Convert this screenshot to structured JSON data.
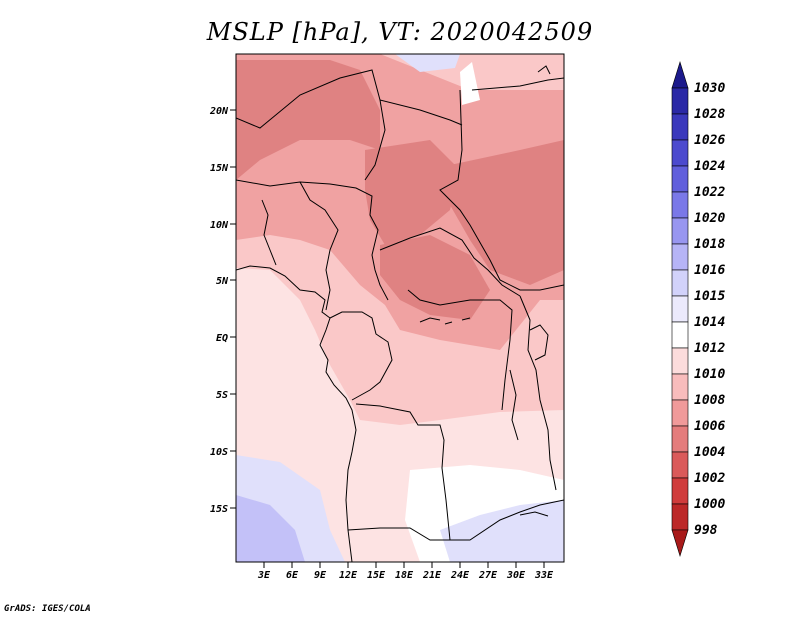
{
  "title": "MSLP [hPa], VT: 2020042509",
  "credit": "GrADS: IGES/COLA",
  "map": {
    "region": "Central Africa",
    "lat_labels": [
      "20N",
      "15N",
      "10N",
      "5N",
      "EQ",
      "5S",
      "10S",
      "15S"
    ],
    "lon_labels": [
      "3E",
      "6E",
      "9E",
      "12E",
      "15E",
      "18E",
      "21E",
      "24E",
      "27E",
      "30E",
      "33E"
    ]
  },
  "colorbar": {
    "levels": [
      "1030",
      "1028",
      "1026",
      "1024",
      "1022",
      "1020",
      "1018",
      "1016",
      "1015",
      "1014",
      "1012",
      "1010",
      "1008",
      "1006",
      "1004",
      "1002",
      "1000",
      "998"
    ],
    "colors": [
      "#1c1a8c",
      "#2a28a6",
      "#3a38bc",
      "#4c4ace",
      "#615fdc",
      "#7a78e8",
      "#9896f0",
      "#b6b4f6",
      "#d2d2fa",
      "#eceafc",
      "#ffffff",
      "#fcdcdc",
      "#f8bcbc",
      "#f09a9a",
      "#e47c7c",
      "#da5a5a",
      "#d03c3c",
      "#bc2828",
      "#a81a1a"
    ]
  },
  "colors": {
    "p1006": "#df8282",
    "p1008": "#f0a2a2",
    "p1010": "#fac8c8",
    "p1012": "#fde3e3",
    "p1014": "#ffffff",
    "p1015": "#e0e0fb",
    "p1016": "#c3c1f8",
    "p1018": "#b3b0f4"
  }
}
